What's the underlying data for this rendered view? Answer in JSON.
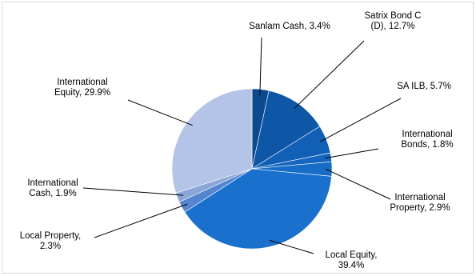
{
  "chart_data": {
    "type": "pie",
    "title": "",
    "start_angle_deg": 90,
    "direction": "clockwise",
    "slices": [
      {
        "label_lines": [
          "Sanlam Cash, 3.4%"
        ],
        "name": "Sanlam Cash",
        "value": 3.4,
        "color": "#0b4a8f"
      },
      {
        "label_lines": [
          "Satrix Bond C",
          "(D), 12.7%"
        ],
        "name": "Satrix Bond C (D)",
        "value": 12.7,
        "color": "#0e56a6"
      },
      {
        "label_lines": [
          "SA ILB, 5.7%"
        ],
        "name": "SA ILB",
        "value": 5.7,
        "color": "#115fb7"
      },
      {
        "label_lines": [
          "International",
          "Bonds, 1.8%"
        ],
        "name": "International Bonds",
        "value": 1.8,
        "color": "#1466c0"
      },
      {
        "label_lines": [
          "International",
          "Property, 2.9%"
        ],
        "name": "International Property",
        "value": 2.9,
        "color": "#176cc6"
      },
      {
        "label_lines": [
          "Local Equity,",
          "39.4%"
        ],
        "name": "Local Equity",
        "value": 39.4,
        "color": "#1a70cc"
      },
      {
        "label_lines": [
          "Local Property,",
          "2.3%"
        ],
        "name": "Local Property",
        "value": 2.3,
        "color": "#5585cf"
      },
      {
        "label_lines": [
          "International",
          "Cash, 1.9%"
        ],
        "name": "International Cash",
        "value": 1.9,
        "color": "#8aa6d8"
      },
      {
        "label_lines": [
          "International",
          "Equity, 29.9%"
        ],
        "name": "International Equity",
        "value": 29.9,
        "color": "#b4c4e6"
      }
    ]
  }
}
